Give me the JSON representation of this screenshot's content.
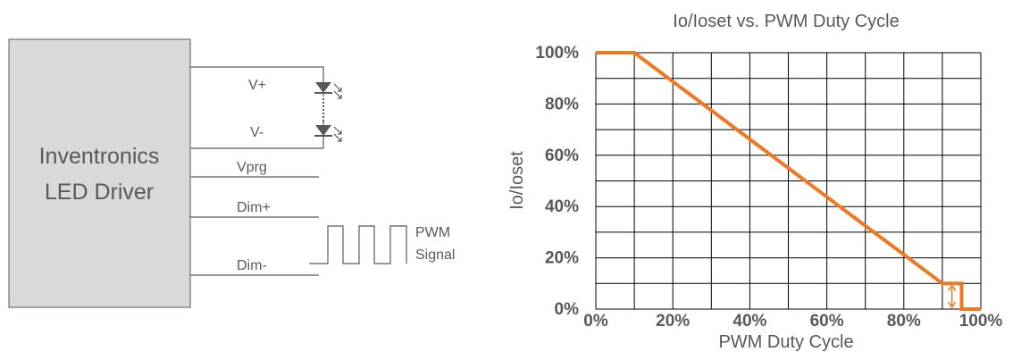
{
  "diagram": {
    "driver_label_line1": "Inventronics",
    "driver_label_line2": "LED Driver",
    "pins": {
      "v_plus": "V+",
      "v_minus": "V-",
      "vprg": "Vprg",
      "dim_plus": "Dim+",
      "dim_minus": "Dim-"
    },
    "pwm_label_line1": "PWM",
    "pwm_label_line2": "Signal"
  },
  "colors": {
    "driver_fill": "#d9d9d9",
    "wire": "#595959",
    "curve": "#f07820",
    "grid": "#000000",
    "label": "#595959"
  },
  "chart_data": {
    "type": "line",
    "title": "Io/Ioset vs. PWM Duty Cycle",
    "xlabel": "PWM Duty Cycle",
    "ylabel": "Io/Ioset",
    "xlim": [
      0,
      100
    ],
    "ylim": [
      0,
      100
    ],
    "x_ticks": [
      0,
      20,
      40,
      60,
      80,
      100
    ],
    "x_tick_labels": [
      "0%",
      "20%",
      "40%",
      "60%",
      "80%",
      "100%"
    ],
    "y_ticks": [
      0,
      20,
      40,
      60,
      80,
      100
    ],
    "y_tick_labels": [
      "0%",
      "20%",
      "40%",
      "60%",
      "80%",
      "100%"
    ],
    "grid_step": 10,
    "grid": true,
    "series": [
      {
        "points": [
          [
            0,
            100
          ],
          [
            10,
            100
          ],
          [
            90,
            10
          ],
          [
            95,
            10
          ],
          [
            95,
            0
          ],
          [
            100,
            0
          ]
        ]
      }
    ],
    "annotations": [
      {
        "type": "double-arrow",
        "x": 92.5,
        "y_from": 10,
        "y_to": 0
      }
    ]
  }
}
